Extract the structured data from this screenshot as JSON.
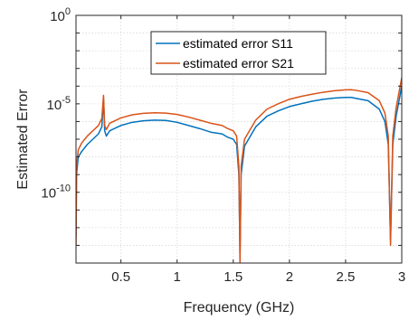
{
  "chart_data": {
    "type": "line",
    "title": "",
    "xlabel": "Frequency (GHz)",
    "ylabel": "Estimated Error",
    "x_scale": "linear",
    "y_scale": "log",
    "xlim": [
      0.1,
      3.0
    ],
    "ylim": [
      1e-14,
      1
    ],
    "grid": true,
    "legend_position": "top-center",
    "x_ticks": [
      {
        "value": 0.5,
        "label": "0.5"
      },
      {
        "value": 1,
        "label": "1"
      },
      {
        "value": 1.5,
        "label": "1.5"
      },
      {
        "value": 2,
        "label": "2"
      },
      {
        "value": 2.5,
        "label": "2.5"
      },
      {
        "value": 3,
        "label": "3"
      }
    ],
    "y_ticks": [
      {
        "value": 1,
        "base": "10",
        "exp": "0"
      },
      {
        "value": 1e-05,
        "base": "10",
        "exp": "-5"
      },
      {
        "value": 1e-10,
        "base": "10",
        "exp": "-10"
      }
    ],
    "series": [
      {
        "name": "estimated error S11",
        "color": "#0072BD",
        "points": [
          [
            0.1,
            3e-13
          ],
          [
            0.105,
            1e-09
          ],
          [
            0.12,
            1e-08
          ],
          [
            0.15,
            2e-08
          ],
          [
            0.2,
            5e-08
          ],
          [
            0.25,
            1e-07
          ],
          [
            0.3,
            2e-07
          ],
          [
            0.33,
            5e-07
          ],
          [
            0.345,
            2e-05
          ],
          [
            0.355,
            3e-07
          ],
          [
            0.37,
            1.5e-07
          ],
          [
            0.4,
            3e-07
          ],
          [
            0.5,
            6e-07
          ],
          [
            0.6,
            9e-07
          ],
          [
            0.7,
            1.1e-06
          ],
          [
            0.8,
            1.2e-06
          ],
          [
            0.9,
            1.15e-06
          ],
          [
            1.0,
            9e-07
          ],
          [
            1.1,
            6e-07
          ],
          [
            1.2,
            4e-07
          ],
          [
            1.3,
            2.5e-07
          ],
          [
            1.4,
            2e-07
          ],
          [
            1.45,
            1.3e-07
          ],
          [
            1.5,
            1e-07
          ],
          [
            1.53,
            5e-08
          ],
          [
            1.55,
            1e-09
          ],
          [
            1.56,
            3e-14
          ],
          [
            1.57,
            1e-09
          ],
          [
            1.6,
            4e-08
          ],
          [
            1.7,
            5e-07
          ],
          [
            1.8,
            2e-06
          ],
          [
            1.9,
            4e-06
          ],
          [
            2.0,
            7e-06
          ],
          [
            2.1,
            1e-05
          ],
          [
            2.2,
            1.4e-05
          ],
          [
            2.3,
            1.8e-05
          ],
          [
            2.4,
            2.1e-05
          ],
          [
            2.5,
            2.3e-05
          ],
          [
            2.55,
            2.3e-05
          ],
          [
            2.6,
            2e-05
          ],
          [
            2.7,
            1.5e-05
          ],
          [
            2.8,
            5e-06
          ],
          [
            2.85,
            1e-06
          ],
          [
            2.88,
            5e-08
          ],
          [
            2.9,
            2e-13
          ],
          [
            2.92,
            5e-08
          ],
          [
            2.95,
            2e-06
          ],
          [
            3.0,
            0.0001
          ]
        ]
      },
      {
        "name": "estimated error S21",
        "color": "#D95319",
        "points": [
          [
            0.1,
            1e-13
          ],
          [
            0.105,
            3e-09
          ],
          [
            0.12,
            2.5e-08
          ],
          [
            0.15,
            6e-08
          ],
          [
            0.2,
            1.5e-07
          ],
          [
            0.25,
            3e-07
          ],
          [
            0.3,
            6e-07
          ],
          [
            0.33,
            1.5e-06
          ],
          [
            0.345,
            3e-05
          ],
          [
            0.355,
            6e-07
          ],
          [
            0.37,
            3.5e-07
          ],
          [
            0.4,
            8e-07
          ],
          [
            0.5,
            1.6e-06
          ],
          [
            0.6,
            2.4e-06
          ],
          [
            0.7,
            2.9e-06
          ],
          [
            0.8,
            3.1e-06
          ],
          [
            0.9,
            3e-06
          ],
          [
            1.0,
            2.5e-06
          ],
          [
            1.1,
            1.8e-06
          ],
          [
            1.2,
            1.2e-06
          ],
          [
            1.3,
            8e-07
          ],
          [
            1.4,
            6e-07
          ],
          [
            1.45,
            4e-07
          ],
          [
            1.5,
            3e-07
          ],
          [
            1.53,
            1.5e-07
          ],
          [
            1.55,
            3e-09
          ],
          [
            1.56,
            1e-14
          ],
          [
            1.57,
            3e-09
          ],
          [
            1.6,
            1e-07
          ],
          [
            1.7,
            1.2e-06
          ],
          [
            1.8,
            5e-06
          ],
          [
            1.9,
            1e-05
          ],
          [
            2.0,
            1.8e-05
          ],
          [
            2.1,
            2.6e-05
          ],
          [
            2.2,
            3.5e-05
          ],
          [
            2.3,
            4.5e-05
          ],
          [
            2.4,
            5.5e-05
          ],
          [
            2.5,
            6.2e-05
          ],
          [
            2.55,
            6.3e-05
          ],
          [
            2.6,
            5.7e-05
          ],
          [
            2.7,
            4.3e-05
          ],
          [
            2.8,
            1.5e-05
          ],
          [
            2.85,
            3e-06
          ],
          [
            2.88,
            1.5e-07
          ],
          [
            2.9,
            1e-13
          ],
          [
            2.92,
            1.5e-07
          ],
          [
            2.95,
            6e-06
          ],
          [
            3.0,
            0.0003
          ]
        ]
      }
    ]
  }
}
